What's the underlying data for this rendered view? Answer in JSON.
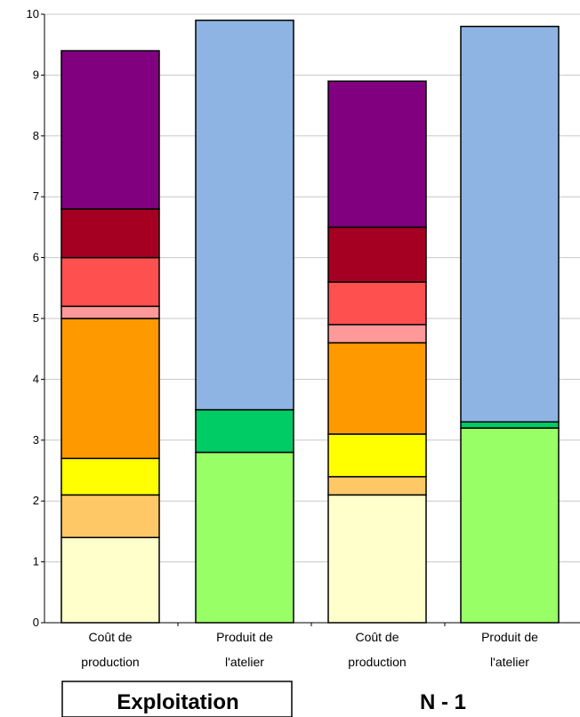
{
  "chart_data": {
    "type": "bar",
    "stacked": true,
    "ylim": [
      0,
      10
    ],
    "yticks": [
      0,
      1,
      2,
      3,
      4,
      5,
      6,
      7,
      8,
      9,
      10
    ],
    "grid": true,
    "legend": "none",
    "bars": [
      {
        "label_line1": "Coût de",
        "label_line2": "production",
        "segments": [
          {
            "value": 1.4,
            "color": "#FFFFCC"
          },
          {
            "value": 0.7,
            "color": "#FFC866"
          },
          {
            "value": 0.6,
            "color": "#FFFF00"
          },
          {
            "value": 2.3,
            "color": "#FF9900"
          },
          {
            "value": 0.2,
            "color": "#FF9999"
          },
          {
            "value": 0.8,
            "color": "#FF5050"
          },
          {
            "value": 0.8,
            "color": "#A50021"
          },
          {
            "value": 2.6,
            "color": "#800080"
          }
        ]
      },
      {
        "label_line1": "Produit de",
        "label_line2": "l'atelier",
        "segments": [
          {
            "value": 2.8,
            "color": "#99FF66"
          },
          {
            "value": 0.7,
            "color": "#00CC66"
          },
          {
            "value": 6.4,
            "color": "#8EB4E3"
          }
        ]
      },
      {
        "label_line1": "Coût de",
        "label_line2": "production",
        "segments": [
          {
            "value": 2.1,
            "color": "#FFFFCC"
          },
          {
            "value": 0.3,
            "color": "#FFC866"
          },
          {
            "value": 0.7,
            "color": "#FFFF00"
          },
          {
            "value": 1.5,
            "color": "#FF9900"
          },
          {
            "value": 0.3,
            "color": "#FF9999"
          },
          {
            "value": 0.7,
            "color": "#FF5050"
          },
          {
            "value": 0.9,
            "color": "#A50021"
          },
          {
            "value": 2.4,
            "color": "#800080"
          }
        ]
      },
      {
        "label_line1": "Produit de",
        "label_line2": "l'atelier",
        "segments": [
          {
            "value": 3.2,
            "color": "#99FF66"
          },
          {
            "value": 0.1,
            "color": "#00CC66"
          },
          {
            "value": 6.5,
            "color": "#8EB4E3"
          }
        ]
      }
    ],
    "groups": [
      {
        "label": "Exploitation",
        "boxed": true
      },
      {
        "label": "N - 1",
        "boxed": false
      }
    ]
  }
}
